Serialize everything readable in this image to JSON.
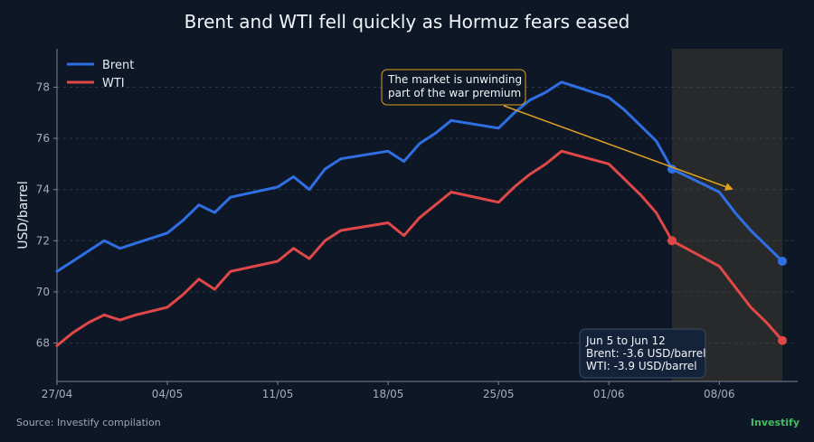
{
  "chart_data": {
    "type": "line",
    "title": "Brent and WTI fell quickly as Hormuz fears eased",
    "ylabel": "USD/barrel",
    "xlabel": "",
    "ylim": [
      66.5,
      79.5
    ],
    "yticks": [
      68,
      70,
      72,
      74,
      76,
      78
    ],
    "x_tick_labels": [
      "27/04",
      "04/05",
      "11/05",
      "18/05",
      "25/05",
      "01/06",
      "08/06"
    ],
    "x": [
      "2025-04-27",
      "2025-04-28",
      "2025-04-29",
      "2025-04-30",
      "2025-05-01",
      "2025-05-02",
      "2025-05-04",
      "2025-05-05",
      "2025-05-06",
      "2025-05-07",
      "2025-05-08",
      "2025-05-11",
      "2025-05-12",
      "2025-05-13",
      "2025-05-14",
      "2025-05-15",
      "2025-05-18",
      "2025-05-19",
      "2025-05-20",
      "2025-05-21",
      "2025-05-22",
      "2025-05-25",
      "2025-05-26",
      "2025-05-27",
      "2025-05-28",
      "2025-05-29",
      "2025-06-01",
      "2025-06-02",
      "2025-06-03",
      "2025-06-04",
      "2025-06-05",
      "2025-06-08",
      "2025-06-09",
      "2025-06-10",
      "2025-06-11",
      "2025-06-12"
    ],
    "series": [
      {
        "name": "Brent",
        "color": "#2f6fe4",
        "values": [
          70.8,
          71.2,
          71.6,
          72.0,
          71.7,
          71.9,
          72.3,
          72.8,
          73.4,
          73.1,
          73.7,
          74.1,
          74.5,
          74.0,
          74.8,
          75.2,
          75.5,
          75.1,
          75.8,
          76.2,
          76.7,
          76.4,
          77.0,
          77.5,
          77.8,
          78.2,
          77.6,
          77.1,
          76.5,
          75.9,
          74.8,
          73.9,
          73.1,
          72.4,
          71.8,
          71.2
        ]
      },
      {
        "name": "WTI",
        "color": "#e04848",
        "values": [
          67.9,
          68.4,
          68.8,
          69.1,
          68.9,
          69.1,
          69.4,
          69.9,
          70.5,
          70.1,
          70.8,
          71.2,
          71.7,
          71.3,
          72.0,
          72.4,
          72.7,
          72.2,
          72.9,
          73.4,
          73.9,
          73.5,
          74.1,
          74.6,
          75.0,
          75.5,
          75.0,
          74.4,
          73.8,
          73.1,
          72.0,
          71.0,
          70.2,
          69.4,
          68.8,
          68.1
        ]
      }
    ],
    "shaded_region": {
      "from": "2025-06-05",
      "to": "2025-06-12",
      "color": "#2a2a2a"
    },
    "legend_position": "top-left",
    "grid": "horizontal dashed",
    "annotation": {
      "lines": [
        "The market is unwinding",
        "part of the war premium"
      ],
      "arrow_color": "#e0a020"
    },
    "summary_box": {
      "lines": [
        "Jun 5 to Jun 12",
        "Brent: -3.6 USD/barrel",
        "WTI: -3.9 USD/barrel"
      ]
    }
  },
  "footer": {
    "source": "Source: Investify compilation",
    "brand": "Investify"
  }
}
